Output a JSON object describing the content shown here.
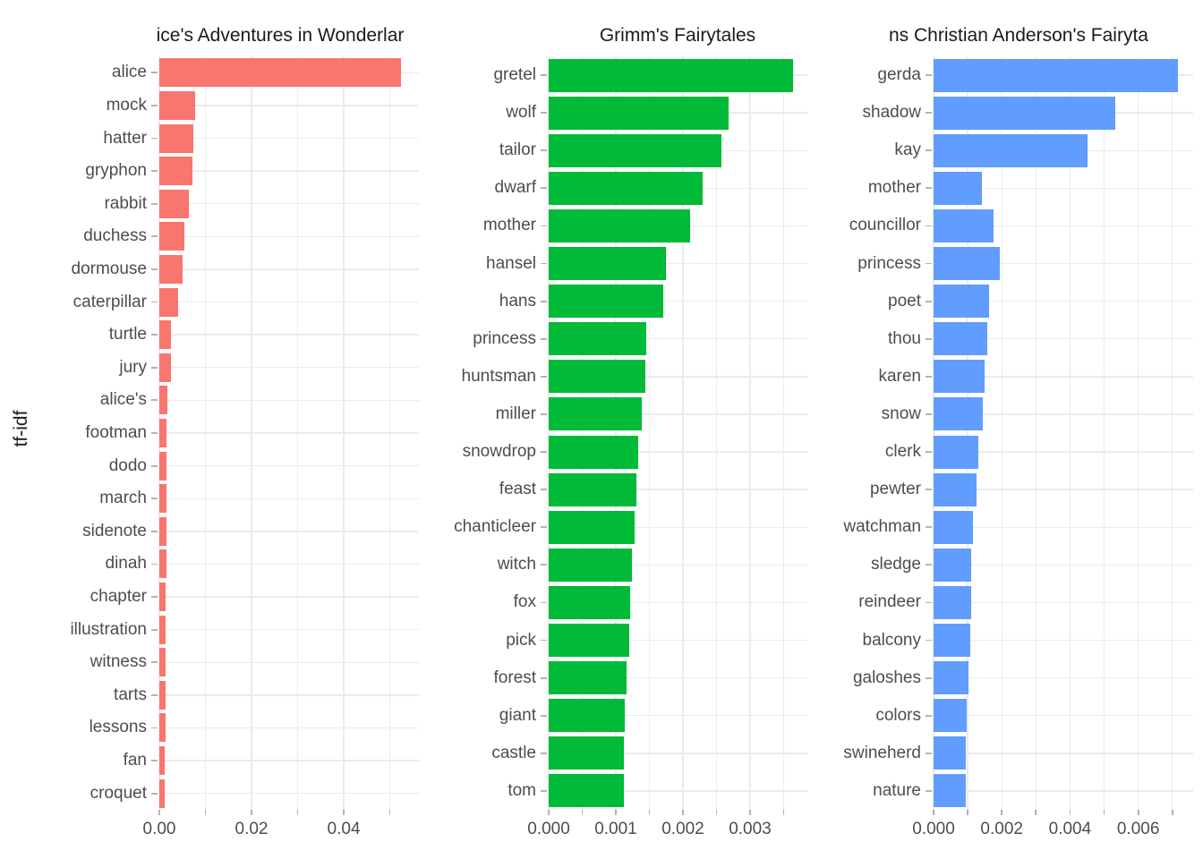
{
  "figure": {
    "ylabel": "tf-idf",
    "background_color": "#FFFFFF",
    "gridline_color": "#EBEBEB",
    "tick_color": "#B3B3B3",
    "axis_text_color": "#4D4D4D",
    "title_text_color": "#1A1A1A"
  },
  "chart_data": {
    "type": "bar",
    "orientation": "horizontal",
    "grid": "on",
    "legend": "none",
    "ylabel": "tf-idf",
    "facets": [
      {
        "title": "ice's Adventures in Wonderlar",
        "bar_color": "#F8766D",
        "x_max": 0.0563,
        "x_tick_values": [
          0,
          0.02,
          0.04
        ],
        "x_tick_labels": [
          "0.00",
          "0.02",
          "0.04"
        ],
        "x_grid_step": 0.01,
        "categories": [
          "alice",
          "mock",
          "hatter",
          "gryphon",
          "rabbit",
          "duchess",
          "dormouse",
          "caterpillar",
          "turtle",
          "jury",
          "alice's",
          "footman",
          "dodo",
          "march",
          "sidenote",
          "dinah",
          "chapter",
          "illustration",
          "witness",
          "tarts",
          "lessons",
          "fan",
          "croquet"
        ],
        "values": [
          0.0525,
          0.0078,
          0.0073,
          0.0072,
          0.0064,
          0.0055,
          0.0051,
          0.004,
          0.0026,
          0.0025,
          0.00175,
          0.0016,
          0.00155,
          0.00152,
          0.0015,
          0.00146,
          0.0014,
          0.00136,
          0.00133,
          0.0013,
          0.00127,
          0.00124,
          0.0012
        ]
      },
      {
        "title": "Grimm's Fairytales",
        "bar_color": "#00BA38",
        "x_max": 0.003867,
        "x_tick_values": [
          0,
          0.001,
          0.002,
          0.003
        ],
        "x_tick_labels": [
          "0.000",
          "0.001",
          "0.002",
          "0.003"
        ],
        "x_grid_step": 0.0005,
        "categories": [
          "gretel",
          "wolf",
          "tailor",
          "dwarf",
          "mother",
          "hansel",
          "hans",
          "princess",
          "huntsman",
          "miller",
          "snowdrop",
          "feast",
          "chanticleer",
          "witch",
          "fox",
          "pick",
          "forest",
          "giant",
          "castle",
          "tom"
        ],
        "values": [
          0.00364,
          0.00268,
          0.00257,
          0.00229,
          0.00211,
          0.00175,
          0.00171,
          0.00145,
          0.00144,
          0.00139,
          0.00133,
          0.00131,
          0.00128,
          0.00124,
          0.00122,
          0.0012,
          0.00116,
          0.00113,
          0.00112,
          0.00112
        ]
      },
      {
        "title": "ns Christian Anderson's Fairyta",
        "bar_color": "#619CFF",
        "x_max": 0.00761,
        "x_tick_values": [
          0,
          0.002,
          0.004,
          0.006
        ],
        "x_tick_labels": [
          "0.000",
          "0.002",
          "0.004",
          "0.006"
        ],
        "x_grid_step": 0.001,
        "categories": [
          "gerda",
          "shadow",
          "kay",
          "mother",
          "councillor",
          "princess",
          "poet",
          "thou",
          "karen",
          "snow",
          "clerk",
          "pewter",
          "watchman",
          "sledge",
          "reindeer",
          "balcony",
          "galoshes",
          "colors",
          "swineherd",
          "nature"
        ],
        "values": [
          0.00717,
          0.00533,
          0.00452,
          0.00142,
          0.00176,
          0.00194,
          0.00163,
          0.00158,
          0.0015,
          0.00144,
          0.00131,
          0.00126,
          0.00115,
          0.00109,
          0.0011,
          0.00108,
          0.00102,
          0.00097,
          0.00094,
          0.00094
        ]
      }
    ]
  }
}
